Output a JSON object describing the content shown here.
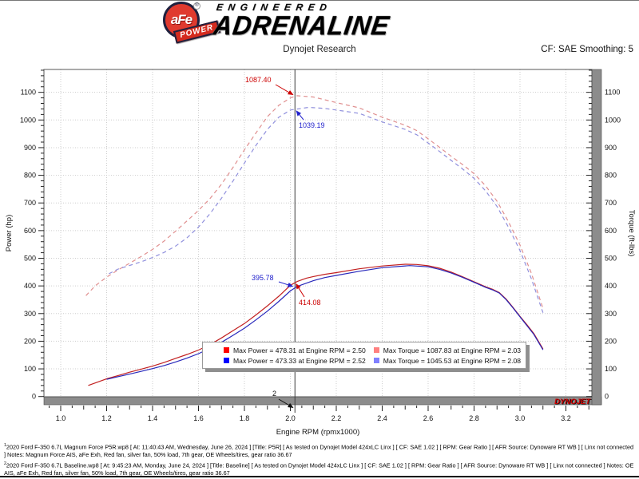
{
  "header": {
    "logo": {
      "badge_main": "aFe",
      "badge_reg": "®",
      "badge_sub": "POWER",
      "engineered": "ENGINEERED",
      "adrenaline": "ADRENALINE"
    },
    "subtitle": "Dynojet Research",
    "cf_label": "CF: SAE Smoothing: 5"
  },
  "chart_data": {
    "type": "line",
    "xlabel": "Engine RPM (rpmx1000)",
    "ylabel_left": "Power (hp)",
    "ylabel_right": "Torque (ft-lbs)",
    "x_ticks": [
      1.0,
      1.2,
      1.4,
      1.6,
      1.8,
      2.0,
      2.2,
      2.4,
      2.6,
      2.8,
      3.0,
      3.2
    ],
    "y_ticks": [
      0,
      100,
      200,
      300,
      400,
      500,
      600,
      700,
      800,
      900,
      1000,
      1100
    ],
    "xlim": [
      0.93,
      3.31
    ],
    "ylim": [
      0,
      1181
    ],
    "grid": "dotted",
    "cursor_rpm": 2.02,
    "cursor_axis_label": "2",
    "brand": "DYNOJET",
    "brand_color": "#d40000",
    "series": [
      {
        "name": "power-p5r",
        "color": "#c22020",
        "dashed": false,
        "points": [
          [
            1.12,
            40
          ],
          [
            1.16,
            52
          ],
          [
            1.2,
            64
          ],
          [
            1.25,
            76
          ],
          [
            1.3,
            88
          ],
          [
            1.35,
            99
          ],
          [
            1.4,
            110
          ],
          [
            1.45,
            123
          ],
          [
            1.5,
            138
          ],
          [
            1.55,
            152
          ],
          [
            1.6,
            168
          ],
          [
            1.65,
            188
          ],
          [
            1.7,
            212
          ],
          [
            1.75,
            238
          ],
          [
            1.8,
            264
          ],
          [
            1.85,
            295
          ],
          [
            1.9,
            328
          ],
          [
            1.95,
            363
          ],
          [
            2.0,
            402
          ],
          [
            2.03,
            416
          ],
          [
            2.07,
            428
          ],
          [
            2.1,
            434
          ],
          [
            2.15,
            442
          ],
          [
            2.2,
            448
          ],
          [
            2.3,
            462
          ],
          [
            2.4,
            472
          ],
          [
            2.5,
            478.3
          ],
          [
            2.55,
            477.5
          ],
          [
            2.6,
            473
          ],
          [
            2.65,
            464
          ],
          [
            2.7,
            450
          ],
          [
            2.75,
            433
          ],
          [
            2.8,
            415
          ],
          [
            2.85,
            397
          ],
          [
            2.88,
            388
          ],
          [
            2.91,
            376
          ],
          [
            2.94,
            352
          ],
          [
            2.97,
            322
          ],
          [
            3.0,
            290
          ],
          [
            3.03,
            260
          ],
          [
            3.06,
            228
          ],
          [
            3.1,
            172
          ]
        ]
      },
      {
        "name": "power-baseline",
        "color": "#2828bb",
        "dashed": false,
        "points": [
          [
            1.2,
            62
          ],
          [
            1.25,
            72
          ],
          [
            1.3,
            81
          ],
          [
            1.35,
            91
          ],
          [
            1.4,
            101
          ],
          [
            1.45,
            112
          ],
          [
            1.5,
            125
          ],
          [
            1.55,
            139
          ],
          [
            1.6,
            155
          ],
          [
            1.65,
            174
          ],
          [
            1.7,
            196
          ],
          [
            1.75,
            221
          ],
          [
            1.8,
            247
          ],
          [
            1.85,
            277
          ],
          [
            1.9,
            309
          ],
          [
            1.95,
            344
          ],
          [
            2.0,
            382
          ],
          [
            2.03,
            398
          ],
          [
            2.07,
            410
          ],
          [
            2.1,
            419
          ],
          [
            2.15,
            430
          ],
          [
            2.2,
            438
          ],
          [
            2.3,
            453
          ],
          [
            2.4,
            466
          ],
          [
            2.52,
            473.3
          ],
          [
            2.6,
            469
          ],
          [
            2.65,
            460
          ],
          [
            2.7,
            447
          ],
          [
            2.75,
            431
          ],
          [
            2.8,
            413
          ],
          [
            2.85,
            395
          ],
          [
            2.88,
            386
          ],
          [
            2.91,
            374
          ],
          [
            2.94,
            350
          ],
          [
            2.97,
            320
          ],
          [
            3.0,
            288
          ],
          [
            3.03,
            257
          ],
          [
            3.06,
            225
          ],
          [
            3.1,
            169
          ]
        ]
      },
      {
        "name": "torque-p5r",
        "color": "#e09090",
        "dashed": true,
        "points": [
          [
            1.11,
            365
          ],
          [
            1.15,
            400
          ],
          [
            1.2,
            432
          ],
          [
            1.25,
            458
          ],
          [
            1.3,
            482
          ],
          [
            1.35,
            506
          ],
          [
            1.4,
            532
          ],
          [
            1.45,
            562
          ],
          [
            1.5,
            598
          ],
          [
            1.55,
            635
          ],
          [
            1.6,
            673
          ],
          [
            1.65,
            716
          ],
          [
            1.7,
            768
          ],
          [
            1.75,
            828
          ],
          [
            1.8,
            892
          ],
          [
            1.85,
            953
          ],
          [
            1.9,
            1012
          ],
          [
            1.95,
            1053
          ],
          [
            2.0,
            1080
          ],
          [
            2.03,
            1087.8
          ],
          [
            2.1,
            1083
          ],
          [
            2.2,
            1063
          ],
          [
            2.3,
            1044
          ],
          [
            2.4,
            1010
          ],
          [
            2.5,
            981
          ],
          [
            2.55,
            962
          ],
          [
            2.6,
            932
          ],
          [
            2.65,
            901
          ],
          [
            2.7,
            869
          ],
          [
            2.75,
            839
          ],
          [
            2.8,
            806
          ],
          [
            2.85,
            762
          ],
          [
            2.9,
            706
          ],
          [
            2.95,
            632
          ],
          [
            3.0,
            548
          ],
          [
            3.05,
            445
          ],
          [
            3.1,
            318
          ]
        ]
      },
      {
        "name": "torque-baseline",
        "color": "#9090dd",
        "dashed": true,
        "points": [
          [
            1.21,
            444
          ],
          [
            1.25,
            461
          ],
          [
            1.3,
            474
          ],
          [
            1.35,
            487
          ],
          [
            1.4,
            503
          ],
          [
            1.45,
            521
          ],
          [
            1.5,
            544
          ],
          [
            1.55,
            574
          ],
          [
            1.6,
            613
          ],
          [
            1.65,
            661
          ],
          [
            1.7,
            717
          ],
          [
            1.75,
            779
          ],
          [
            1.8,
            844
          ],
          [
            1.85,
            908
          ],
          [
            1.9,
            966
          ],
          [
            1.95,
            1010
          ],
          [
            2.0,
            1036
          ],
          [
            2.08,
            1045.5
          ],
          [
            2.15,
            1042
          ],
          [
            2.2,
            1036
          ],
          [
            2.3,
            1024
          ],
          [
            2.4,
            993
          ],
          [
            2.5,
            966
          ],
          [
            2.55,
            947
          ],
          [
            2.6,
            917
          ],
          [
            2.65,
            886
          ],
          [
            2.7,
            854
          ],
          [
            2.75,
            823
          ],
          [
            2.8,
            789
          ],
          [
            2.85,
            744
          ],
          [
            2.9,
            687
          ],
          [
            2.95,
            612
          ],
          [
            3.0,
            528
          ],
          [
            3.05,
            425
          ],
          [
            3.1,
            303
          ]
        ]
      }
    ],
    "legend": [
      {
        "color": "#ff0000",
        "label": "Max Power = 478.31 at Engine RPM = 2.50"
      },
      {
        "color": "#ff8080",
        "label": "Max Torque = 1087.83 at Engine RPM = 2.03"
      },
      {
        "color": "#0000ff",
        "label": "Max Power = 473.33 at Engine RPM = 2.52"
      },
      {
        "color": "#8080ff",
        "label": "Max Torque = 1045.53 at Engine RPM = 2.08"
      }
    ],
    "annotations": [
      {
        "id": "cursor-torque-p5r",
        "text": "1087.40",
        "color": "#cc0000",
        "rpm": 2.02,
        "value": 1087.4
      },
      {
        "id": "cursor-torque-base",
        "text": "1039.19",
        "color": "#2222cc",
        "rpm": 2.02,
        "value": 1039.19
      },
      {
        "id": "cursor-power-base",
        "text": "395.78",
        "color": "#2222cc",
        "rpm": 2.02,
        "value": 395.78
      },
      {
        "id": "cursor-power-p5r",
        "text": "414.08",
        "color": "#cc0000",
        "rpm": 2.02,
        "value": 414.08
      },
      {
        "id": "cursor-x",
        "text": "2",
        "color": "#111111",
        "rpm": 2.02,
        "value": null
      }
    ]
  },
  "footnotes": [
    {
      "mark": "1",
      "text": "2020 Ford F-350 6.7L  Magnum Force P5R.wp8 [ At: 11:40:43 AM, Wednesday, June 26, 2024 ] [Title: P5R]  [ As tested on Dynojet Model 424xLC Linx ] [ CF: SAE 1.02 ] [ RPM: Gear Ratio ] [ AFR Source: Dynoware RT WB ] [ Linx not connected ] Notes: Magnum Force AIS, aFe Exh,  Red fan, silver fan, 50% load, 7th gear, OE Wheels/tires, gear ratio 36.67"
    },
    {
      "mark": "2",
      "text": "2020 Ford F-350 6.7L Baseline.wp8 [ At: 9:45:23 AM, Monday, June 24, 2024 ] [Title: Baseline]  [ As tested on Dynojet Model 424xLC Linx ] [ CF: SAE 1.02 ] [ RPM: Gear Ratio ] [ AFR Source: Dynoware RT WB ] [ Linx not connected ] Notes: OE AIS, aFe Exh,  Red fan, silver fan, 50% load, 7th gear, OE Wheels/tires, gear ratio 36.67"
    }
  ]
}
